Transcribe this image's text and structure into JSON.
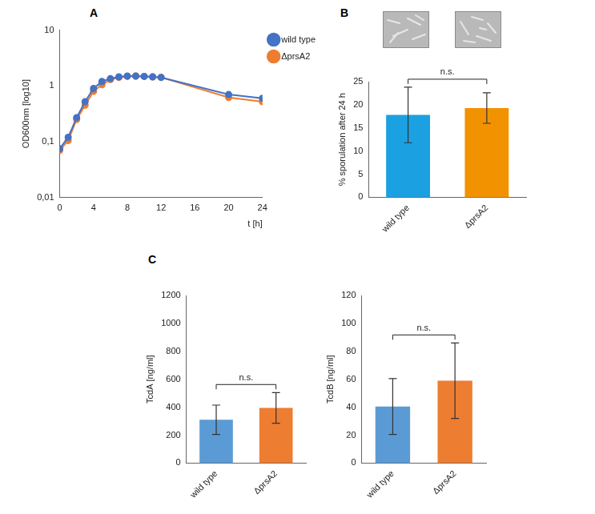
{
  "chart_data": [
    {
      "panel": "A",
      "type": "line",
      "x_label": "t [h]",
      "y_label": "OD600nm [log10]",
      "log": "y",
      "grid": false,
      "legend": "right",
      "xlim": [
        0,
        24
      ],
      "xticks": [
        0,
        4,
        8,
        12,
        16,
        20,
        24
      ],
      "ylim": [
        0.01,
        10
      ],
      "yticks": [
        {
          "value": 0.01,
          "label": "0,01"
        },
        {
          "value": 0.1,
          "label": "0,1"
        },
        1,
        10
      ],
      "x": [
        0,
        1,
        2,
        3,
        4,
        5,
        6,
        7,
        8,
        9,
        10,
        11,
        12,
        20,
        24
      ],
      "series": [
        {
          "name": "wild type",
          "color": "#4472c4",
          "marker": "circle",
          "values": [
            0.075,
            0.12,
            0.27,
            0.52,
            0.9,
            1.2,
            1.35,
            1.45,
            1.5,
            1.5,
            1.48,
            1.45,
            1.42,
            0.7,
            0.6
          ]
        },
        {
          "name": "ΔprsA2",
          "color": "#ed7d31",
          "marker": "circle",
          "values": [
            0.07,
            0.105,
            0.25,
            0.45,
            0.8,
            1.05,
            1.3,
            1.42,
            1.48,
            1.5,
            1.48,
            1.45,
            1.42,
            0.62,
            0.52
          ]
        }
      ]
    },
    {
      "panel": "B",
      "type": "bar",
      "categories": [
        "wild type",
        "ΔprsA2"
      ],
      "values": [
        17.8,
        19.3
      ],
      "errors": [
        6.0,
        3.3
      ],
      "colors": [
        "#1ba1e2",
        "#f39200"
      ],
      "y_label": "% sporulation after 24 h",
      "ylim": [
        0,
        25
      ],
      "yticks": [
        0,
        5,
        10,
        15,
        20,
        25
      ],
      "annotation": "n.s.",
      "grid": false
    },
    {
      "panel": "C",
      "type": "bar",
      "categories": [
        "wild type",
        "ΔprsA2"
      ],
      "values": [
        310,
        395
      ],
      "errors": [
        105,
        110
      ],
      "colors": [
        "#5b9bd5",
        "#ed7d31"
      ],
      "y_label": "TcdA [ng/ml]",
      "ylim": [
        0,
        1200
      ],
      "yticks": [
        0,
        200,
        400,
        600,
        800,
        1000,
        1200
      ],
      "annotation": "n.s.",
      "grid": false
    },
    {
      "type": "bar",
      "categories": [
        "wild type",
        "ΔprsA2"
      ],
      "values": [
        40.5,
        59
      ],
      "errors": [
        20,
        27
      ],
      "colors": [
        "#5b9bd5",
        "#ed7d31"
      ],
      "y_label": "TcdB [ng/ml]",
      "ylim": [
        0,
        120
      ],
      "yticks": [
        0,
        20,
        40,
        60,
        80,
        100,
        120
      ],
      "annotation": "n.s.",
      "grid": false
    }
  ]
}
